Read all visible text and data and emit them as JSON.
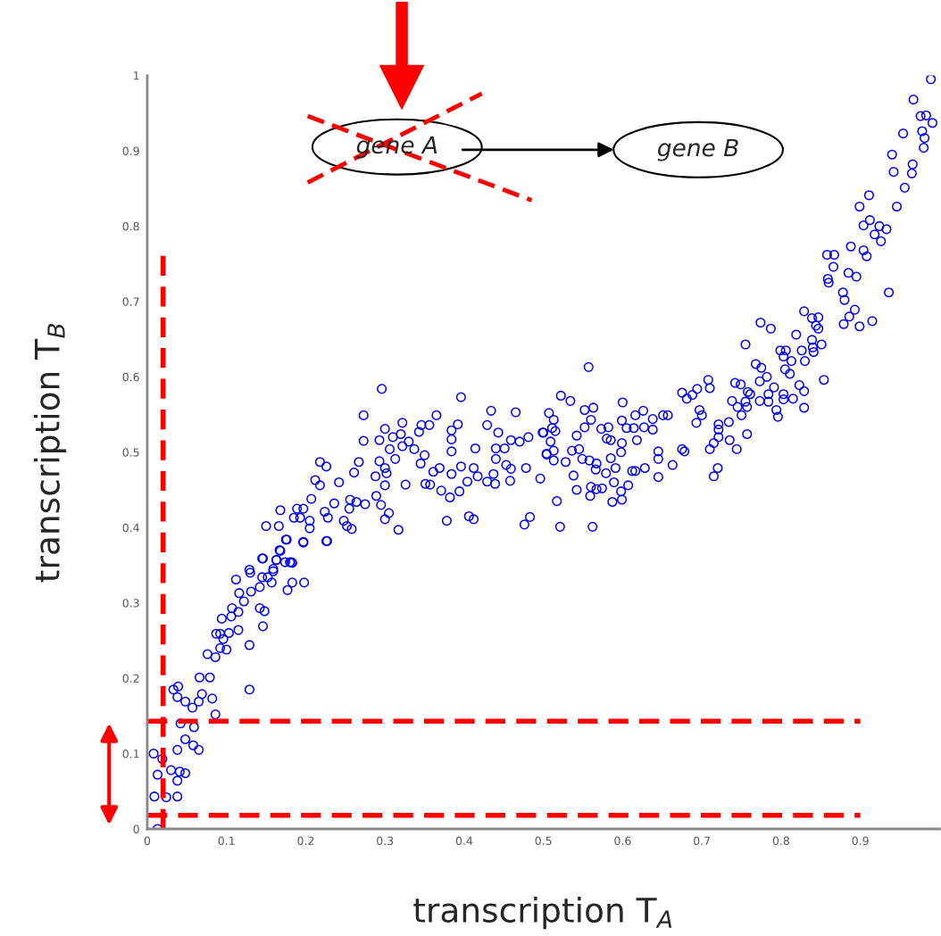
{
  "chart_data": {
    "type": "scatter",
    "xlabel": "transcription T$_{A}$",
    "ylabel": "transcription T$_{B}$",
    "xlim": [
      0,
      1
    ],
    "ylim": [
      0,
      1
    ],
    "xticks": [
      0,
      0.1,
      0.2,
      0.3,
      0.4,
      0.5,
      0.6,
      0.7,
      0.8,
      0.9
    ],
    "yticks": [
      0,
      0.1,
      0.2,
      0.3,
      0.4,
      0.5,
      0.6,
      0.7,
      0.8,
      0.9,
      1
    ],
    "grid": false,
    "marker": "circle",
    "annotations": [
      "gene A",
      "gene B"
    ],
    "ref_lines": [
      {
        "axis": "x",
        "value": 0.02,
        "color": "#ff0000",
        "line_style": "dashed"
      },
      {
        "axis": "y",
        "value": 0.143,
        "color": "#ff0000",
        "line_style": "dashed"
      },
      {
        "axis": "y",
        "value": 0.018,
        "color": "#ff0000",
        "line_style": "dashed"
      }
    ],
    "series": [
      {
        "color": "#0000ff",
        "x": [
          0.008,
          0.013,
          0.019,
          0.009,
          0.013,
          0.024,
          0.03,
          0.038,
          0.038,
          0.041,
          0.048,
          0.038,
          0.048,
          0.058,
          0.065,
          0.042,
          0.059,
          0.033,
          0.039,
          0.038,
          0.048,
          0.057,
          0.065,
          0.069,
          0.066,
          0.079,
          0.082,
          0.086,
          0.129,
          0.076,
          0.086,
          0.092,
          0.1,
          0.092,
          0.087,
          0.096,
          0.103,
          0.094,
          0.106,
          0.115,
          0.129,
          0.146,
          0.142,
          0.148,
          0.115,
          0.107,
          0.122,
          0.131,
          0.116,
          0.112,
          0.13,
          0.142,
          0.145,
          0.152,
          0.157,
          0.159,
          0.145,
          0.163,
          0.167,
          0.176,
          0.174,
          0.18,
          0.183,
          0.177,
          0.183,
          0.198,
          0.197,
          0.227,
          0.296,
          0.396,
          0.273,
          0.273,
          0.293,
          0.3,
          0.322,
          0.31,
          0.32,
          0.33,
          0.346,
          0.356,
          0.365,
          0.343,
          0.322,
          0.337,
          0.306,
          0.35,
          0.313,
          0.293,
          0.267,
          0.261,
          0.288,
          0.3,
          0.302,
          0.3,
          0.326,
          0.345,
          0.361,
          0.369,
          0.351,
          0.357,
          0.371,
          0.382,
          0.394,
          0.384,
          0.384,
          0.384,
          0.384,
          0.392,
          0.396,
          0.404,
          0.412,
          0.414,
          0.417,
          0.429,
          0.429,
          0.434,
          0.443,
          0.44,
          0.44,
          0.437,
          0.439,
          0.451,
          0.453,
          0.459,
          0.458,
          0.459,
          0.465,
          0.47,
          0.478,
          0.481,
          0.496,
          0.499,
          0.504,
          0.483,
          0.476,
          0.406,
          0.412,
          0.378,
          0.317,
          0.305,
          0.3,
          0.295,
          0.289,
          0.275,
          0.264,
          0.256,
          0.255,
          0.248,
          0.252,
          0.258,
          0.236,
          0.242,
          0.224,
          0.228,
          0.218,
          0.226,
          0.212,
          0.218,
          0.207,
          0.197,
          0.189,
          0.185,
          0.193,
          0.205,
          0.205,
          0.168,
          0.166,
          0.15,
          0.175,
          0.197,
          0.226,
          0.168,
          0.146,
          0.163,
          0.182,
          0.129,
          0.159,
          0.507,
          0.511,
          0.557,
          0.522,
          0.534,
          0.513,
          0.5,
          0.515,
          0.509,
          0.513,
          0.504,
          0.513,
          0.517,
          0.521,
          0.562,
          0.538,
          0.542,
          0.528,
          0.536,
          0.545,
          0.549,
          0.558,
          0.567,
          0.566,
          0.542,
          0.552,
          0.552,
          0.56,
          0.563,
          0.559,
          0.56,
          0.567,
          0.574,
          0.579,
          0.585,
          0.591,
          0.587,
          0.599,
          0.598,
          0.607,
          0.589,
          0.573,
          0.582,
          0.58,
          0.585,
          0.6,
          0.599,
          0.605,
          0.599,
          0.598,
          0.614,
          0.616,
          0.626,
          0.618,
          0.612,
          0.616,
          0.628,
          0.627,
          0.638,
          0.638,
          0.645,
          0.645,
          0.645,
          0.651,
          0.657,
          0.663,
          0.675,
          0.678,
          0.675,
          0.681,
          0.688,
          0.694,
          0.708,
          0.71,
          0.697,
          0.7,
          0.693,
          0.721,
          0.721,
          0.721,
          0.715,
          0.71,
          0.734,
          0.735,
          0.744,
          0.72,
          0.715,
          0.757,
          0.738,
          0.745,
          0.75,
          0.757,
          0.755,
          0.742,
          0.749,
          0.758,
          0.761,
          0.773,
          0.773,
          0.782,
          0.768,
          0.775,
          0.755,
          0.784,
          0.784,
          0.791,
          0.794,
          0.796,
          0.803,
          0.803,
          0.815,
          0.823,
          0.829,
          0.829,
          0.854,
          0.805,
          0.811,
          0.813,
          0.799,
          0.806,
          0.803,
          0.826,
          0.83,
          0.84,
          0.851,
          0.841,
          0.989,
          0.967,
          0.976,
          0.983,
          0.991,
          0.978,
          0.981,
          0.98,
          0.954,
          0.94,
          0.942,
          0.966,
          0.965,
          0.956,
          0.946,
          0.911,
          0.899,
          0.912,
          0.904,
          0.918,
          0.924,
          0.933,
          0.926,
          0.888,
          0.904,
          0.908,
          0.858,
          0.867,
          0.866,
          0.885,
          0.895,
          0.859,
          0.86,
          0.936,
          0.878,
          0.88,
          0.893,
          0.886,
          0.915,
          0.899,
          0.879,
          0.829,
          0.839,
          0.847,
          0.844,
          0.847,
          0.774,
          0.787,
          0.819,
          0.839
        ],
        "values": [
          0.1,
          0.0,
          0.093,
          0.043,
          0.072,
          0.042,
          0.078,
          0.043,
          0.064,
          0.076,
          0.074,
          0.105,
          0.119,
          0.111,
          0.105,
          0.14,
          0.135,
          0.185,
          0.189,
          0.175,
          0.169,
          0.161,
          0.169,
          0.179,
          0.201,
          0.201,
          0.173,
          0.152,
          0.185,
          0.232,
          0.228,
          0.24,
          0.238,
          0.259,
          0.259,
          0.252,
          0.26,
          0.279,
          0.282,
          0.264,
          0.244,
          0.269,
          0.293,
          0.289,
          0.288,
          0.293,
          0.302,
          0.315,
          0.313,
          0.331,
          0.34,
          0.321,
          0.334,
          0.334,
          0.327,
          0.342,
          0.359,
          0.357,
          0.37,
          0.384,
          0.354,
          0.354,
          0.353,
          0.317,
          0.327,
          0.327,
          0.381,
          0.382,
          0.584,
          0.573,
          0.549,
          0.515,
          0.516,
          0.531,
          0.539,
          0.52,
          0.524,
          0.514,
          0.536,
          0.536,
          0.549,
          0.527,
          0.508,
          0.504,
          0.504,
          0.496,
          0.491,
          0.488,
          0.487,
          0.473,
          0.468,
          0.479,
          0.472,
          0.456,
          0.457,
          0.485,
          0.474,
          0.479,
          0.458,
          0.457,
          0.449,
          0.44,
          0.448,
          0.471,
          0.501,
          0.517,
          0.529,
          0.537,
          0.481,
          0.461,
          0.479,
          0.505,
          0.468,
          0.461,
          0.536,
          0.555,
          0.526,
          0.505,
          0.491,
          0.471,
          0.458,
          0.505,
          0.483,
          0.478,
          0.462,
          0.516,
          0.553,
          0.514,
          0.479,
          0.52,
          0.465,
          0.526,
          0.498,
          0.414,
          0.404,
          0.415,
          0.411,
          0.409,
          0.397,
          0.419,
          0.411,
          0.43,
          0.442,
          0.431,
          0.434,
          0.437,
          0.425,
          0.409,
          0.402,
          0.398,
          0.432,
          0.46,
          0.421,
          0.413,
          0.487,
          0.481,
          0.463,
          0.456,
          0.438,
          0.425,
          0.425,
          0.413,
          0.413,
          0.409,
          0.399,
          0.423,
          0.402,
          0.402,
          0.384,
          0.38,
          0.382,
          0.369,
          0.359,
          0.357,
          0.354,
          0.344,
          0.345,
          0.552,
          0.532,
          0.613,
          0.575,
          0.568,
          0.543,
          0.526,
          0.528,
          0.514,
          0.502,
          0.497,
          0.489,
          0.435,
          0.401,
          0.401,
          0.469,
          0.45,
          0.487,
          0.502,
          0.504,
          0.491,
          0.489,
          0.485,
          0.477,
          0.522,
          0.533,
          0.556,
          0.543,
          0.559,
          0.442,
          0.454,
          0.451,
          0.452,
          0.472,
          0.492,
          0.479,
          0.434,
          0.437,
          0.448,
          0.456,
          0.46,
          0.531,
          0.533,
          0.518,
          0.516,
          0.566,
          0.542,
          0.532,
          0.512,
          0.5,
          0.532,
          0.549,
          0.555,
          0.516,
          0.475,
          0.475,
          0.479,
          0.533,
          0.53,
          0.544,
          0.501,
          0.491,
          0.467,
          0.549,
          0.549,
          0.483,
          0.504,
          0.501,
          0.579,
          0.571,
          0.576,
          0.584,
          0.596,
          0.585,
          0.556,
          0.549,
          0.539,
          0.537,
          0.53,
          0.52,
          0.512,
          0.504,
          0.54,
          0.516,
          0.504,
          0.479,
          0.468,
          0.524,
          0.568,
          0.56,
          0.549,
          0.56,
          0.567,
          0.592,
          0.59,
          0.58,
          0.577,
          0.568,
          0.594,
          0.6,
          0.617,
          0.612,
          0.643,
          0.567,
          0.577,
          0.586,
          0.556,
          0.547,
          0.577,
          0.57,
          0.571,
          0.589,
          0.581,
          0.559,
          0.596,
          0.61,
          0.604,
          0.621,
          0.635,
          0.635,
          0.627,
          0.635,
          0.621,
          0.639,
          0.643,
          0.633,
          0.995,
          0.968,
          0.946,
          0.947,
          0.937,
          0.926,
          0.917,
          0.904,
          0.923,
          0.895,
          0.872,
          0.882,
          0.87,
          0.851,
          0.826,
          0.841,
          0.826,
          0.808,
          0.801,
          0.789,
          0.8,
          0.796,
          0.78,
          0.773,
          0.768,
          0.76,
          0.762,
          0.762,
          0.746,
          0.738,
          0.733,
          0.73,
          0.725,
          0.712,
          0.712,
          0.702,
          0.689,
          0.68,
          0.674,
          0.667,
          0.67,
          0.687,
          0.678,
          0.679,
          0.668,
          0.664,
          0.672,
          0.664,
          0.656,
          0.649
        ]
      }
    ]
  }
}
